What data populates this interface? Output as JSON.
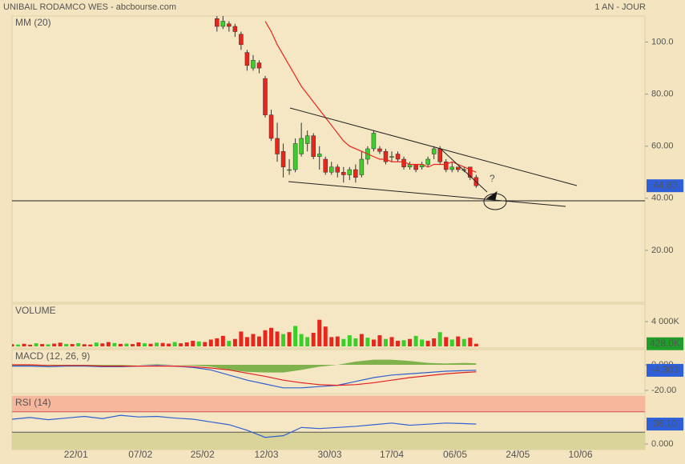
{
  "chart_data": [
    {
      "type": "candlestick",
      "title": "UNIBAIL RODAMCO WES - abcbourse.com",
      "subtitle": "1 AN - JOUR",
      "annotation": "?",
      "xlim": [
        0,
        105
      ],
      "ylim": [
        0,
        110
      ],
      "xticks": [
        {
          "value": 10.6,
          "label": "22/01"
        },
        {
          "value": 21.3,
          "label": "07/02"
        },
        {
          "value": 31.6,
          "label": "25/02"
        },
        {
          "value": 42.2,
          "label": "12/03"
        },
        {
          "value": 52.7,
          "label": "30/03"
        },
        {
          "value": 63,
          "label": "17/04"
        },
        {
          "value": 73.5,
          "label": "06/05"
        },
        {
          "value": 83.9,
          "label": "24/05"
        },
        {
          "value": 94.3,
          "label": "10/06"
        }
      ],
      "yticks": [
        {
          "value": 100,
          "label": "100.0"
        },
        {
          "value": 80,
          "label": "80.00"
        },
        {
          "value": 60,
          "label": "60.00"
        },
        {
          "value": 40,
          "label": "40.00"
        },
        {
          "value": 20,
          "label": "20.00"
        }
      ],
      "up_color": "#3ccf2a",
      "down_color": "#e8261c",
      "x": [
        34,
        35,
        36,
        37,
        38,
        39,
        40,
        41,
        42,
        43,
        44,
        45,
        46,
        47,
        48,
        49,
        50,
        51,
        52,
        53,
        54,
        55,
        56,
        57,
        58,
        59,
        60,
        61,
        62,
        63,
        64,
        65,
        66,
        67,
        68,
        69,
        70,
        71,
        72,
        73,
        74,
        75,
        76,
        77
      ],
      "open": [
        109,
        106,
        107,
        106,
        103,
        96,
        90,
        92,
        86,
        72,
        63,
        58,
        51,
        51,
        57,
        61,
        64,
        56,
        55,
        50,
        52,
        50,
        49,
        51,
        49,
        55,
        59,
        59,
        58,
        56,
        57,
        55,
        52,
        53,
        52,
        53,
        57,
        59,
        54,
        51,
        52,
        51,
        52,
        48
      ],
      "high": [
        110,
        110,
        108,
        107,
        104,
        97,
        95,
        93,
        87,
        74,
        69,
        61,
        55,
        63,
        69,
        66,
        65,
        60,
        56,
        54,
        53,
        52,
        52,
        53,
        58,
        60,
        66,
        60,
        59,
        58,
        58,
        56,
        54,
        53,
        54,
        56,
        60,
        60,
        55,
        54,
        52,
        52,
        52,
        49
      ],
      "low": [
        104,
        105,
        104,
        102,
        97,
        89,
        89,
        88,
        71,
        62,
        54,
        48,
        49,
        50,
        56,
        58,
        55,
        51,
        49,
        49,
        48,
        46,
        47,
        46,
        48,
        53,
        58,
        57,
        53,
        54,
        54,
        51,
        51,
        50,
        51,
        52,
        55,
        53,
        50,
        50,
        50,
        50,
        47,
        44
      ],
      "close": [
        106,
        108,
        106,
        104,
        99,
        91,
        93,
        90,
        72,
        63,
        57,
        52,
        51,
        61,
        63,
        64,
        56,
        57,
        50,
        52,
        50,
        49,
        51,
        48,
        55,
        59,
        65,
        58,
        54,
        56,
        55,
        52,
        53,
        51,
        53,
        55,
        59,
        54,
        51,
        52,
        51,
        51,
        48,
        44.8
      ],
      "series": [
        {
          "name": "MM (20)",
          "color": "#e8261c",
          "values": [
            null,
            null,
            null,
            null,
            null,
            null,
            null,
            null,
            108,
            104,
            99,
            95,
            91,
            87,
            83,
            80,
            77,
            74,
            71,
            68,
            65,
            62,
            60,
            59,
            58,
            57,
            56,
            55,
            55,
            54,
            54,
            54,
            53,
            53,
            53,
            52,
            53,
            53,
            53,
            54,
            53,
            52,
            51,
            50
          ]
        }
      ],
      "last": {
        "value": 44.8,
        "label": "44.80"
      },
      "badge_color": "#2f5fd8"
    },
    {
      "type": "bar",
      "title": "VOLUME",
      "xlim": [
        0,
        105
      ],
      "ylim": [
        0,
        6840
      ],
      "yticks": [
        {
          "value": 4000,
          "label": "4 000K"
        }
      ],
      "x": [
        0,
        1,
        2,
        3,
        4,
        5,
        6,
        7,
        8,
        9,
        10,
        11,
        12,
        13,
        14,
        15,
        16,
        17,
        18,
        19,
        20,
        21,
        22,
        23,
        24,
        25,
        26,
        27,
        28,
        29,
        30,
        31,
        32,
        33,
        34,
        35,
        36,
        37,
        38,
        39,
        40,
        41,
        42,
        43,
        44,
        45,
        46,
        47,
        48,
        49,
        50,
        51,
        52,
        53,
        54,
        55,
        56,
        57,
        58,
        59,
        60,
        61,
        62,
        63,
        64,
        65,
        66,
        67,
        68,
        69,
        70,
        71,
        72,
        73,
        74,
        75,
        76,
        77
      ],
      "values": [
        350,
        300,
        420,
        280,
        500,
        380,
        330,
        450,
        600,
        400,
        380,
        520,
        350,
        300,
        620,
        480,
        700,
        550,
        400,
        450,
        380,
        650,
        500,
        420,
        600,
        550,
        450,
        700,
        500,
        650,
        900,
        800,
        700,
        1100,
        1300,
        1700,
        900,
        1200,
        2400,
        1500,
        2000,
        1600,
        2600,
        3000,
        2400,
        2000,
        2300,
        3300,
        2000,
        1500,
        2200,
        4300,
        3200,
        1500,
        1600,
        1200,
        1800,
        1300,
        2000,
        1400,
        1100,
        1800,
        1200,
        1500,
        900,
        1000,
        1200,
        1700,
        1100,
        900,
        1300,
        2300,
        1500,
        1100,
        1600,
        1200,
        1400,
        428
      ],
      "colors": [
        "#e8261c",
        "#3ccf2a",
        "#e8261c",
        "#e8261c",
        "#3ccf2a",
        "#e8261c",
        "#3ccf2a",
        "#e8261c",
        "#e8261c",
        "#3ccf2a",
        "#e8261c",
        "#3ccf2a",
        "#e8261c",
        "#e8261c",
        "#3ccf2a",
        "#e8261c",
        "#e8261c",
        "#3ccf2a",
        "#e8261c",
        "#3ccf2a",
        "#e8261c",
        "#e8261c",
        "#3ccf2a",
        "#e8261c",
        "#3ccf2a",
        "#e8261c",
        "#e8261c",
        "#3ccf2a",
        "#e8261c",
        "#e8261c",
        "#e8261c",
        "#3ccf2a",
        "#e8261c",
        "#e8261c",
        "#e8261c",
        "#e8261c",
        "#3ccf2a",
        "#e8261c",
        "#e8261c",
        "#e8261c",
        "#e8261c",
        "#e8261c",
        "#e8261c",
        "#e8261c",
        "#e8261c",
        "#3ccf2a",
        "#e8261c",
        "#3ccf2a",
        "#3ccf2a",
        "#3ccf2a",
        "#e8261c",
        "#e8261c",
        "#e8261c",
        "#e8261c",
        "#e8261c",
        "#3ccf2a",
        "#3ccf2a",
        "#3ccf2a",
        "#e8261c",
        "#3ccf2a",
        "#e8261c",
        "#e8261c",
        "#3ccf2a",
        "#e8261c",
        "#e8261c",
        "#3ccf2a",
        "#e8261c",
        "#3ccf2a",
        "#3ccf2a",
        "#e8261c",
        "#e8261c",
        "#3ccf2a",
        "#e8261c",
        "#3ccf2a",
        "#e8261c",
        "#3ccf2a",
        "#e8261c",
        "#e8261c"
      ],
      "last": {
        "value": 428,
        "label": "428.0K"
      },
      "badge_color": "#1f9e2a"
    },
    {
      "type": "line",
      "title": "MACD (12, 26, 9)",
      "xlim": [
        0,
        105
      ],
      "ylim": [
        -22.5,
        11.9
      ],
      "yticks": [
        {
          "value": 0,
          "label": "0.000"
        },
        {
          "value": -20,
          "label": "-20.00"
        }
      ],
      "x": [
        0,
        3,
        6,
        9,
        12,
        15,
        18,
        21,
        24,
        27,
        30,
        33,
        36,
        39,
        42,
        45,
        48,
        51,
        54,
        57,
        60,
        63,
        66,
        69,
        72,
        75,
        77
      ],
      "series": [
        {
          "style": "area",
          "color": "#6aa838",
          "values": [
            -1,
            -1,
            -1,
            -0.5,
            -0.5,
            -0.5,
            -0.5,
            0,
            0.5,
            0,
            -0.5,
            -1.5,
            -4,
            -5.5,
            -6,
            -6,
            -4,
            -1.5,
            0,
            2.5,
            4,
            4,
            3,
            1.5,
            1,
            1.5,
            1.2
          ]
        },
        {
          "style": "line",
          "color": "#3060d0",
          "values": [
            -1,
            -1,
            -1.5,
            -1,
            -1,
            -1.5,
            -1.5,
            -1,
            -0.5,
            -1,
            -2,
            -4,
            -8,
            -12,
            -15,
            -18,
            -18,
            -17,
            -16,
            -13,
            -10,
            -8,
            -7,
            -6,
            -5,
            -4.5,
            -4.3
          ]
        },
        {
          "style": "line",
          "color": "#e02020",
          "values": [
            0,
            0,
            -0.5,
            -0.5,
            -0.5,
            -1,
            -1,
            -1,
            -1,
            -1,
            -1.5,
            -2.5,
            -4,
            -6.5,
            -9,
            -12,
            -14,
            -15.5,
            -16,
            -15.5,
            -14,
            -12,
            -10,
            -8.5,
            -7,
            -6,
            -5.5
          ]
        }
      ],
      "last": -4.303,
      "badge_color": "#2f5fd8"
    },
    {
      "type": "line",
      "title": "RSI (14)",
      "xlim": [
        0,
        105
      ],
      "ylim": [
        0,
        87
      ],
      "yticks": [
        {
          "value": 0,
          "label": "0.000"
        }
      ],
      "overbought": 70,
      "oversold": 30,
      "overbought_color": "#f6b79c",
      "oversold_color": "#d9d49a",
      "x": [
        0,
        3,
        6,
        9,
        12,
        15,
        18,
        21,
        24,
        27,
        30,
        33,
        36,
        39,
        42,
        45,
        48,
        51,
        54,
        57,
        60,
        63,
        66,
        69,
        72,
        75,
        77
      ],
      "series": [
        {
          "style": "line",
          "color": "#3060d0",
          "values": [
            45,
            48,
            44,
            47,
            50,
            46,
            52,
            49,
            50,
            47,
            45,
            40,
            35,
            25,
            12,
            15,
            30,
            28,
            30,
            32,
            35,
            38,
            34,
            36,
            38,
            37,
            36.1
          ]
        }
      ],
      "last": {
        "value": 36.1,
        "label": "36.10"
      },
      "badge_color": "#2f5fd8"
    }
  ]
}
